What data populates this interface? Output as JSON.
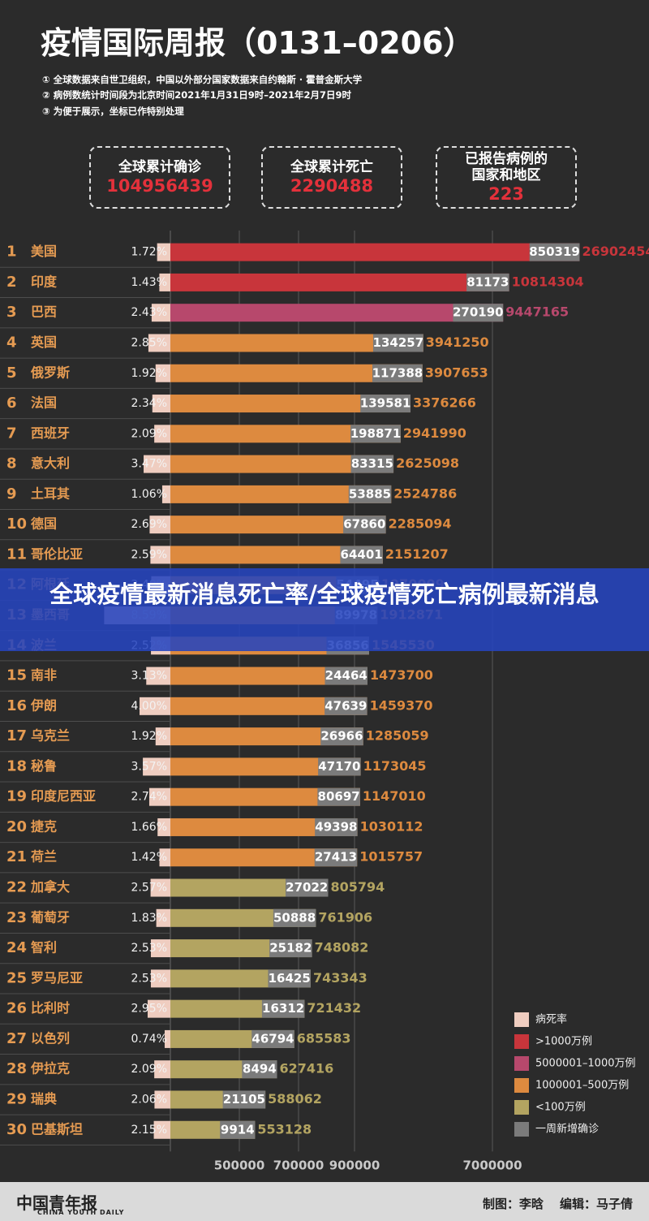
{
  "chart_data": {
    "type": "bar",
    "orientation": "horizontal",
    "title": "疫情国际周报（0131–0206）",
    "notes": [
      "① 全球数据来自世卫组织，中国以外部分国家数据来自约翰斯 · 霍普金斯大学",
      "② 病例数统计时间段为北京时间2021年1月31日9时–2021年2月7日9时",
      "③ 为便于展示，坐标已作特别处理"
    ],
    "summary": [
      {
        "label": "全球累计确诊",
        "value": 104956439
      },
      {
        "label": "全球累计死亡",
        "value": 2290488
      },
      {
        "label": "已报告病例的国家和地区",
        "value": 223
      }
    ],
    "ranks": [
      1,
      2,
      3,
      4,
      5,
      6,
      7,
      8,
      9,
      10,
      11,
      12,
      13,
      14,
      15,
      16,
      17,
      18,
      19,
      20,
      21,
      22,
      23,
      24,
      25,
      26,
      27,
      28,
      29,
      30
    ],
    "categories": [
      "美国",
      "印度",
      "巴西",
      "英国",
      "俄罗斯",
      "法国",
      "西班牙",
      "意大利",
      "土耳其",
      "德国",
      "哥伦比亚",
      "阿根廷",
      "墨西哥",
      "波兰",
      "南非",
      "伊朗",
      "乌克兰",
      "秘鲁",
      "印度尼西亚",
      "捷克",
      "荷兰",
      "加拿大",
      "葡萄牙",
      "智利",
      "罗马尼亚",
      "比利时",
      "以色列",
      "伊拉克",
      "瑞典",
      "巴基斯坦"
    ],
    "values": [
      26902454,
      10814304,
      9447165,
      3941250,
      3907653,
      3376266,
      2941990,
      2625098,
      2524786,
      2285094,
      2151207,
      1970009,
      1912871,
      1545530,
      1473700,
      1459370,
      1285059,
      1173045,
      1147010,
      1030112,
      1015757,
      805794,
      761906,
      748082,
      743343,
      721432,
      685583,
      627416,
      588062,
      553128
    ],
    "bar_colors": [
      "#c8353b",
      "#c8353b",
      "#b7486c",
      "#dd8a3f",
      "#dd8a3f",
      "#dd8a3f",
      "#dd8a3f",
      "#dd8a3f",
      "#dd8a3f",
      "#dd8a3f",
      "#dd8a3f",
      "#dd8a3f",
      "#dd8a3f",
      "#dd8a3f",
      "#dd8a3f",
      "#dd8a3f",
      "#dd8a3f",
      "#dd8a3f",
      "#dd8a3f",
      "#dd8a3f",
      "#dd8a3f",
      "#b3a461",
      "#b3a461",
      "#b3a461",
      "#b3a461",
      "#b3a461",
      "#b3a461",
      "#b3a461",
      "#b3a461",
      "#b3a461"
    ],
    "series": [
      {
        "name": "病死率",
        "color": "#efcdc0",
        "values": [
          1.72,
          1.43,
          2.43,
          2.85,
          1.92,
          2.34,
          2.09,
          3.47,
          1.06,
          2.69,
          2.59,
          2.48,
          8.59,
          2.52,
          3.13,
          4.0,
          1.92,
          3.57,
          2.74,
          1.66,
          1.42,
          2.57,
          1.83,
          2.53,
          2.53,
          2.95,
          0.74,
          2.09,
          2.06,
          2.15
        ],
        "value_labels": [
          "1.72%",
          "1.43%",
          "2.43%",
          "2.85%",
          "1.92%",
          "2.34%",
          "2.09%",
          "3.47%",
          "1.06%",
          "2.69%",
          "2.59%",
          "2.48%",
          "8.59%",
          "2.52%",
          "3.13%",
          "4.00%",
          "1.92%",
          "3.57%",
          "2.74%",
          "1.66%",
          "1.42%",
          "2.57%",
          "1.83%",
          "2.53%",
          "2.53%",
          "2.95%",
          "0.74%",
          "2.09%",
          "2.06%",
          "2.15%"
        ]
      },
      {
        "name": "一周新增确诊",
        "color": "#7b7b7b",
        "values": [
          850319,
          81173,
          270190,
          134257,
          117388,
          139581,
          198871,
          83315,
          53885,
          67860,
          64401,
          54495,
          89978,
          36856,
          24464,
          47639,
          26966,
          47170,
          80697,
          49398,
          27413,
          27022,
          50888,
          25182,
          16425,
          16312,
          46794,
          8494,
          21105,
          9914
        ]
      }
    ],
    "color_legend": [
      {
        "name": ">1000万例",
        "color": "#c8353b"
      },
      {
        "name": "5000001–1000万例",
        "color": "#b7486c"
      },
      {
        "name": "1000001–500万例",
        "color": "#dd8a3f"
      },
      {
        "name": "<100万例",
        "color": "#b3a461"
      }
    ],
    "xlim": [
      0,
      27000000
    ],
    "xticks": [
      500000,
      700000,
      900000,
      7000000
    ],
    "grid": true,
    "overlay_title": "全球疫情最新消息死亡率/全球疫情死亡病例最新消息",
    "logo": "中国青年报",
    "logo_sub": "CHINA YOUTH DAILY",
    "credits": [
      "制图：李晗",
      "编辑：马子倩"
    ]
  }
}
